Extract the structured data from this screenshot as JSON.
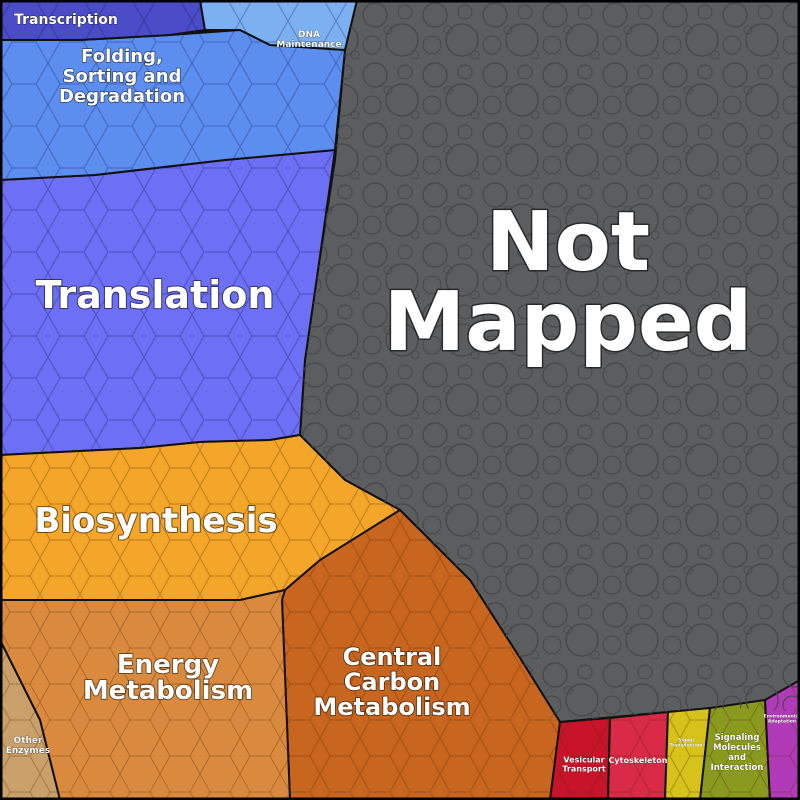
{
  "diagram": {
    "type": "voronoi-treemap",
    "colors": {
      "not_mapped": "#5c5d5f",
      "translation": "#6d6ff5",
      "folding_sorting_degradation": "#5c8ef0",
      "transcription": "#4a4cc8",
      "dna_maintenance": "#7db0f0",
      "biosynthesis": "#f4a62a",
      "energy_metabolism": "#d98a3e",
      "central_carbon_metabolism": "#c8651f",
      "other_enzymes": "#c9a06a",
      "vesicular_transport": "#c8142a",
      "cytoskeleton": "#d92a48",
      "signal_transduction": "#d6c21a",
      "signaling_molecules_and_interaction": "#8a9a1e",
      "environmental_adaptation": "#b03ab8"
    },
    "labels": {
      "not_mapped": [
        "Not",
        "Mapped"
      ],
      "translation": [
        "Translation"
      ],
      "folding_sorting_degradation": [
        "Folding,",
        "Sorting and",
        "Degradation"
      ],
      "transcription": [
        "Transcription"
      ],
      "dna_maintenance": [
        "DNA",
        "Maintenance"
      ],
      "biosynthesis": [
        "Biosynthesis"
      ],
      "energy_metabolism": [
        "Energy",
        "Metabolism"
      ],
      "central_carbon_metabolism": [
        "Central",
        "Carbon",
        "Metabolism"
      ],
      "other_enzymes": [
        "Other",
        "Enzymes"
      ],
      "vesicular_transport": [
        "Vesicular",
        "Transport"
      ],
      "cytoskeleton": [
        "Cytoskeleton"
      ],
      "signal_transduction": [
        "Signal",
        "Transduction"
      ],
      "signaling_molecules_and_interaction": [
        "Signaling",
        "Molecules",
        "and",
        "Interaction"
      ],
      "environmental_adaptation": [
        "Environmental",
        "Adaptation"
      ]
    }
  }
}
